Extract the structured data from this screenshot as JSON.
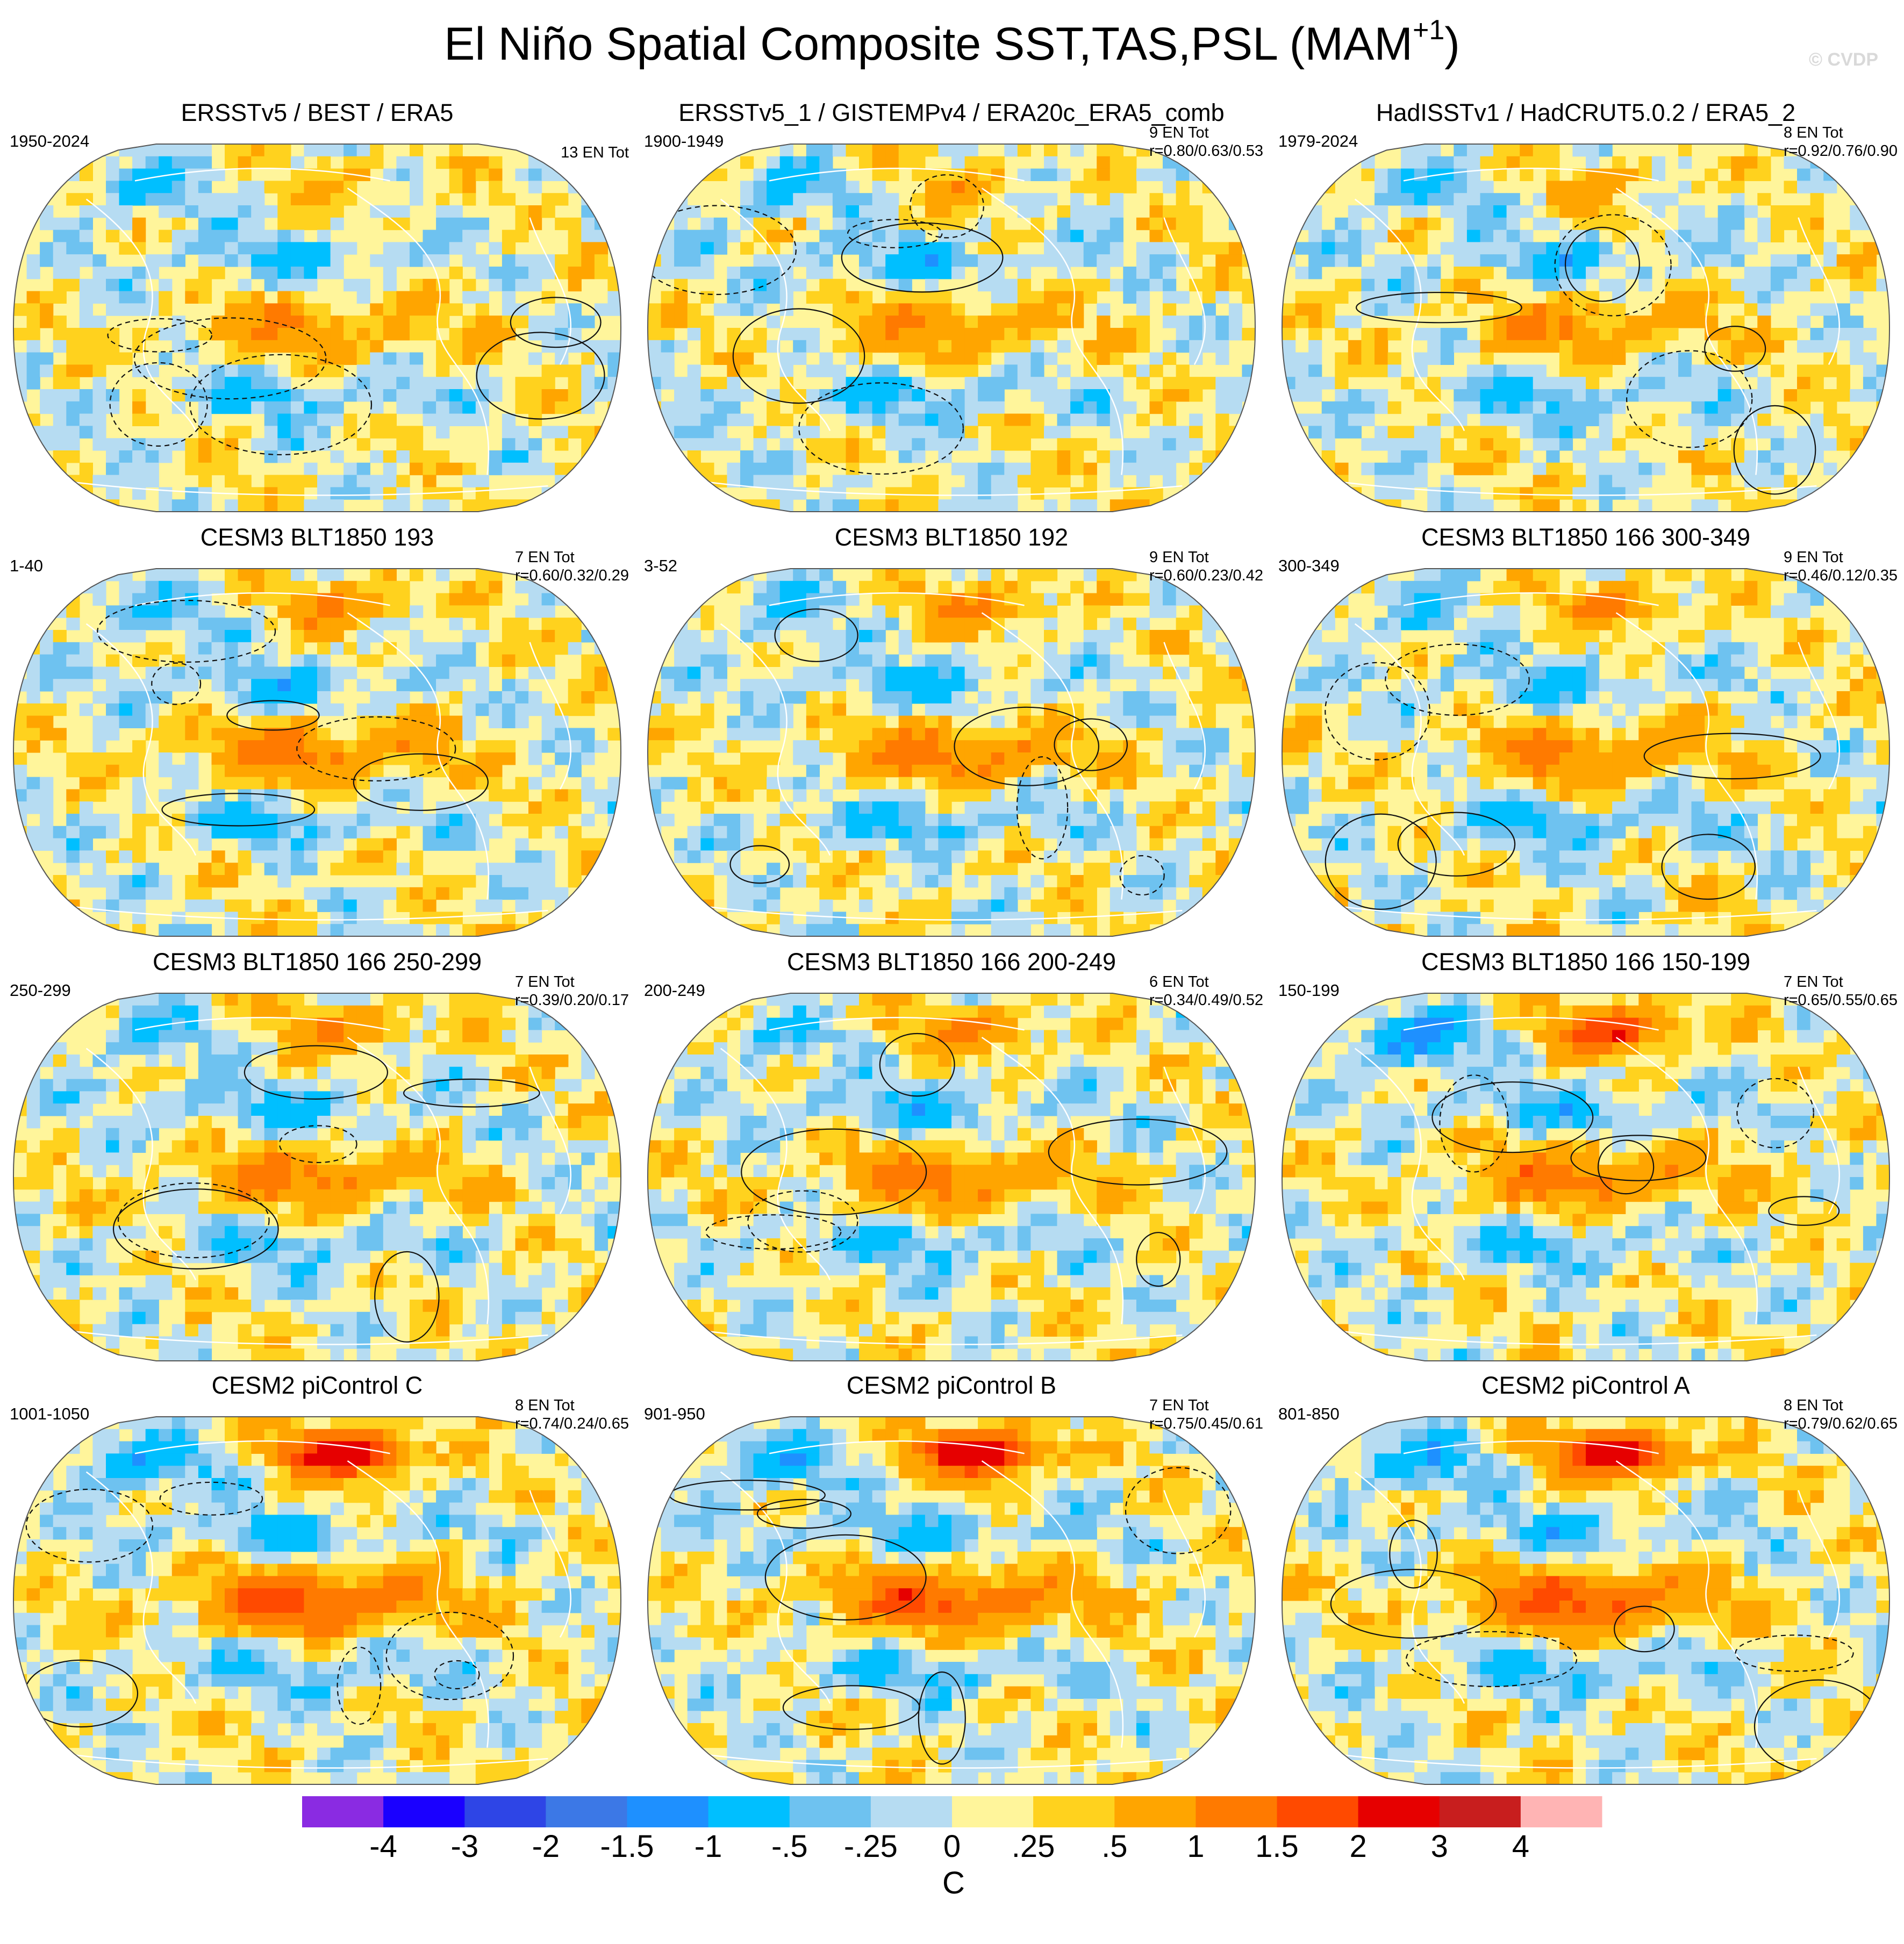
{
  "figure": {
    "title": "El Niño Spatial Composite SST,TAS,PSL (MAM",
    "title_sup": "+1",
    "title_close": ")",
    "watermark": "© CVDP"
  },
  "chart_data": {
    "type": "heatmap",
    "description_type": "spatial composite maps (Robinson projection) with sea level pressure contours",
    "variables": [
      "SST",
      "TAS",
      "PSL"
    ],
    "season": "MAM+1",
    "panels": [
      {
        "title": "ERSSTv5 / BEST / ERA5",
        "period": "1950-2024",
        "events": "13 EN Tot",
        "r": "",
        "pattern": "obs1"
      },
      {
        "title": "ERSSTv5_1 / GISTEMPv4 / ERA20c_ERA5_comb",
        "period": "1900-1949",
        "events": "9 EN Tot",
        "r": "r=0.80/0.63/0.53",
        "pattern": "obs2"
      },
      {
        "title": "HadISSTv1 / HadCRUT5.0.2 / ERA5_2",
        "period": "1979-2024",
        "events": "8 EN Tot",
        "r": "r=0.92/0.76/0.90",
        "pattern": "obs3"
      },
      {
        "title": "CESM3 BLT1850 193",
        "period": "1-40",
        "events": "7 EN Tot",
        "r": "r=0.60/0.32/0.29",
        "pattern": "model"
      },
      {
        "title": "CESM3 BLT1850 192",
        "period": "3-52",
        "events": "9 EN Tot",
        "r": "r=0.60/0.23/0.42",
        "pattern": "model"
      },
      {
        "title": "CESM3 BLT1850 166 300-349",
        "period": "300-349",
        "events": "9 EN Tot",
        "r": "r=0.46/0.12/0.35",
        "pattern": "model"
      },
      {
        "title": "CESM3 BLT1850 166 250-299",
        "period": "250-299",
        "events": "7 EN Tot",
        "r": "r=0.39/0.20/0.17",
        "pattern": "model"
      },
      {
        "title": "CESM3 BLT1850 166 200-249",
        "period": "200-249",
        "events": "6 EN Tot",
        "r": "r=0.34/0.49/0.52",
        "pattern": "model"
      },
      {
        "title": "CESM3 BLT1850 166 150-199",
        "period": "150-199",
        "events": "7 EN Tot",
        "r": "r=0.65/0.55/0.65",
        "pattern": "model_warm"
      },
      {
        "title": "CESM2 piControl C",
        "period": "1001-1050",
        "events": "8 EN Tot",
        "r": "r=0.74/0.24/0.65",
        "pattern": "strong"
      },
      {
        "title": "CESM2 piControl B",
        "period": "901-950",
        "events": "7 EN Tot",
        "r": "r=0.75/0.45/0.61",
        "pattern": "strong"
      },
      {
        "title": "CESM2 piControl A",
        "period": "801-850",
        "events": "8 EN Tot",
        "r": "r=0.79/0.62/0.65",
        "pattern": "strong"
      }
    ],
    "colorbar": {
      "units": "C",
      "boundaries": [
        "-4",
        "-3",
        "-2",
        "-1.5",
        "-1",
        "-.5",
        "-.25",
        "0",
        ".25",
        ".5",
        "1",
        "1.5",
        "2",
        "3",
        "4"
      ],
      "colors": [
        "#8a2be2",
        "#1a00ff",
        "#2e45e6",
        "#3c78e6",
        "#1e90ff",
        "#00bfff",
        "#6ec2f0",
        "#b6dcf2",
        "#fff59b",
        "#ffd21e",
        "#ffa500",
        "#ff7a00",
        "#ff4a00",
        "#e60000",
        "#c81e1e",
        "#ffb4b4"
      ]
    }
  }
}
